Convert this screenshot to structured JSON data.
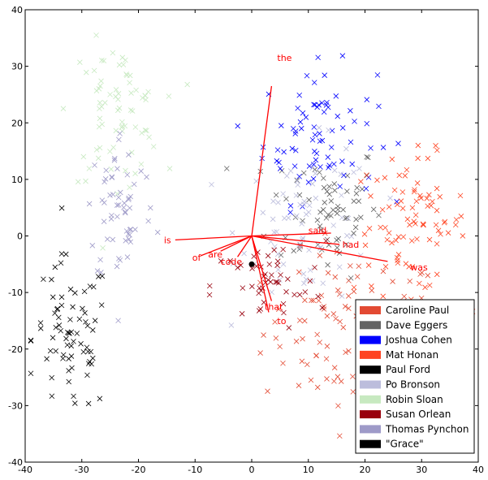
{
  "chart_data": {
    "type": "scatter",
    "title": "",
    "xlabel": "",
    "ylabel": "",
    "xlim": [
      -40,
      40
    ],
    "ylim": [
      -40,
      40
    ],
    "xticks": [
      "-40",
      "-30",
      "-20",
      "-10",
      "0",
      "10",
      "20",
      "30",
      "40"
    ],
    "yticks": [
      "40",
      "30",
      "20",
      "10",
      "0",
      "-10",
      "-20",
      "-30",
      "-40"
    ],
    "grid": false,
    "legend_position": "bottom-right",
    "series": [
      {
        "name": "Caroline Paul",
        "color": "#e34a33",
        "marker": "x",
        "center": [
          18,
          -17
        ],
        "spread": [
          8,
          7
        ],
        "count": 110
      },
      {
        "name": "Dave Eggers",
        "color": "#636363",
        "marker": "x",
        "center": [
          13,
          5
        ],
        "spread": [
          5,
          6
        ],
        "count": 70
      },
      {
        "name": "Joshua Cohen",
        "color": "#0000ff",
        "marker": "x",
        "center": [
          12,
          18
        ],
        "spread": [
          5,
          6
        ],
        "count": 80
      },
      {
        "name": "Mat Honan",
        "color": "#ff4422",
        "marker": "x",
        "center": [
          28,
          2
        ],
        "spread": [
          5,
          6
        ],
        "count": 90
      },
      {
        "name": "Paul Ford",
        "color": "#000000",
        "marker": "x",
        "center": [
          -32,
          -18
        ],
        "spread": [
          3.5,
          7
        ],
        "count": 75
      },
      {
        "name": "Po Bronson",
        "color": "#bcbddc",
        "marker": "x",
        "center": [
          10,
          2
        ],
        "spread": [
          6,
          7
        ],
        "count": 70
      },
      {
        "name": "Robin Sloan",
        "color": "#c7e9c0",
        "marker": "x",
        "center": [
          -24,
          22
        ],
        "spread": [
          4,
          6
        ],
        "count": 75
      },
      {
        "name": "Susan Orlean",
        "color": "#99000d",
        "marker": "x",
        "center": [
          3,
          -9
        ],
        "spread": [
          5,
          4
        ],
        "count": 50
      },
      {
        "name": "Thomas Pynchon",
        "color": "#9e9ac8",
        "marker": "x",
        "center": [
          -23,
          5
        ],
        "spread": [
          3,
          7
        ],
        "count": 60
      },
      {
        "name": "\"Grace\"",
        "color": "#000000",
        "marker": "o",
        "points": [
          [
            0,
            -5
          ]
        ]
      }
    ],
    "loadings": [
      {
        "word": "the",
        "x": 3.5,
        "y": 26.5,
        "label_x": 4.5,
        "label_y": 31.5
      },
      {
        "word": "said",
        "x": 14,
        "y": 0.5,
        "label_x": 10,
        "label_y": 1
      },
      {
        "word": "had",
        "x": 15.5,
        "y": -1.5,
        "label_x": 16,
        "label_y": -1.5
      },
      {
        "word": "was",
        "x": 24,
        "y": -4.5,
        "label_x": 28,
        "label_y": -5.5
      },
      {
        "word": "is",
        "x": -13.5,
        "y": -0.7,
        "label_x": -15.5,
        "label_y": -0.7
      },
      {
        "word": "of",
        "x": -9,
        "y": -3.5,
        "label_x": -10.5,
        "label_y": -3.8
      },
      {
        "word": "are",
        "x": -5.5,
        "y": -2.7,
        "label_x": -7.7,
        "label_y": -3.2
      },
      {
        "word": "code",
        "x": -2.5,
        "y": -3.7,
        "label_x": -5.5,
        "label_y": -4.5
      },
      {
        "word": "that",
        "x": 3.5,
        "y": -11.5,
        "label_x": 2.3,
        "label_y": -12.5
      },
      {
        "word": "to",
        "x": 3,
        "y": -13.5,
        "label_x": 4.5,
        "label_y": -15
      }
    ],
    "loading_color": "#ff0000"
  }
}
